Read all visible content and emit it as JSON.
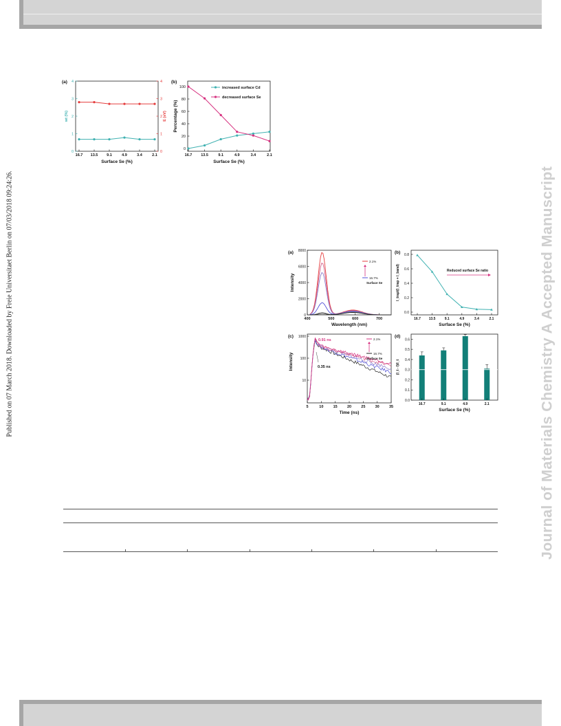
{
  "side_note": "Published on 07 March 2018. Downloaded by Freie Universitaet Berlin on 07/03/2018 09:24:26.",
  "watermark": "Journal of Materials Chemistry A Accepted Manuscript",
  "colors": {
    "teal": "#3fb1b1",
    "magenta": "#d6307f",
    "red": "#e53d3d",
    "bar_teal": "#127f78"
  },
  "chart_data": [
    {
      "panel": "(a)",
      "type": "line",
      "categories": [
        "16.7",
        "13.5",
        "9.1",
        "4.9",
        "3.4",
        "2.1"
      ],
      "xlabel": "Surface Se (%)",
      "ylabel_left": "wt (%)",
      "ylabel_right": "E (eV)",
      "ylim": [
        0,
        4
      ],
      "yticks": [
        "0",
        "1",
        "2",
        "3",
        "4"
      ],
      "series": [
        {
          "axis": "left",
          "color": "#3fb1b1",
          "values": [
            0.68,
            0.68,
            0.68,
            0.78,
            0.68,
            0.68
          ]
        },
        {
          "axis": "right",
          "color": "#e53d3d",
          "values": [
            2.8,
            2.8,
            2.7,
            2.7,
            2.7,
            2.7
          ]
        }
      ]
    },
    {
      "panel": "(b)",
      "type": "line",
      "categories": [
        "16.7",
        "13.5",
        "9.1",
        "4.9",
        "3.4",
        "2.1"
      ],
      "xlabel": "Surface Se (%)",
      "ylabel": "Percentage (%)",
      "ylim": [
        0,
        100
      ],
      "yticks": [
        "0",
        "20",
        "40",
        "60",
        "80",
        "100"
      ],
      "series": [
        {
          "name": "increased surface Cd",
          "color": "#3fb1b1",
          "values": [
            0,
            5,
            15,
            21,
            24,
            27
          ]
        },
        {
          "name": "decreased surface Se",
          "color": "#d6307f",
          "values": [
            100,
            81,
            54,
            27,
            21,
            12
          ]
        }
      ]
    },
    {
      "panel": "(a)",
      "type": "line",
      "xlabel": "Wavelength (nm)",
      "ylabel": "Intensity",
      "xlim": [
        400,
        750
      ],
      "xticks": [
        "400",
        "500",
        "600",
        "700"
      ],
      "ylim": [
        0,
        8000
      ],
      "yticks": [
        "0",
        "2000",
        "4000",
        "6000",
        "8000"
      ],
      "legend_top": "2.1%",
      "legend_bottom": "16.7%",
      "legend_note": "Surface Se",
      "series": [
        {
          "color": "#e53d3d",
          "peak": 7750
        },
        {
          "color": "#d35a84",
          "peak": 6450
        },
        {
          "color": "#8a7ac8",
          "peak": 5250
        },
        {
          "color": "#5050d8",
          "peak": 1500
        },
        {
          "color": "#7f7f7f",
          "peak": 300
        },
        {
          "color": "#222222",
          "peak": 150
        }
      ],
      "trap_peak": {
        "x": 590,
        "value": 600
      }
    },
    {
      "panel": "(b)",
      "type": "line",
      "categories": [
        "16.7",
        "13.5",
        "9.1",
        "4.9",
        "3.4",
        "2.1"
      ],
      "xlabel": "Surface Se (%)",
      "ylabel": "I_trap/(I_trap + I_band)",
      "ylim": [
        0,
        0.8
      ],
      "yticks": [
        "0.0",
        "0.2",
        "0.4",
        "0.6",
        "0.8"
      ],
      "annotation": "Reduced surface Se ratio",
      "series": [
        {
          "color": "#3fb1b1",
          "values": [
            0.79,
            0.56,
            0.25,
            0.07,
            0.04,
            0.035
          ]
        }
      ]
    },
    {
      "panel": "(c)",
      "type": "line",
      "xlabel": "Time (ns)",
      "ylabel": "Intensity",
      "xlim": [
        5,
        35
      ],
      "xticks": [
        "5",
        "10",
        "15",
        "20",
        "25",
        "30",
        "35"
      ],
      "yscale": "log",
      "ylim": [
        1,
        1000
      ],
      "yticks": [
        "10",
        "100",
        "1000"
      ],
      "legend_top": "2.1%",
      "legend_bottom": "16.7%",
      "legend_note": "Surface Se",
      "annotations": [
        "0.91 ns",
        "0.35 ns"
      ]
    },
    {
      "panel": "(d)",
      "type": "bar",
      "categories": [
        "16.7",
        "9.1",
        "4.9",
        "2.1"
      ],
      "values": [
        0.44,
        0.49,
        0.63,
        0.31
      ],
      "errors": [
        0.035,
        0.025,
        0.015,
        0.04
      ],
      "xlabel": "Surface Se (%)",
      "ylabel": "(I_t - I)/I_t",
      "ylim": [
        0,
        0.65
      ],
      "yticks": [
        "0.0",
        "0.1",
        "0.2",
        "0.3",
        "0.4",
        "0.5",
        "0.6"
      ]
    }
  ]
}
